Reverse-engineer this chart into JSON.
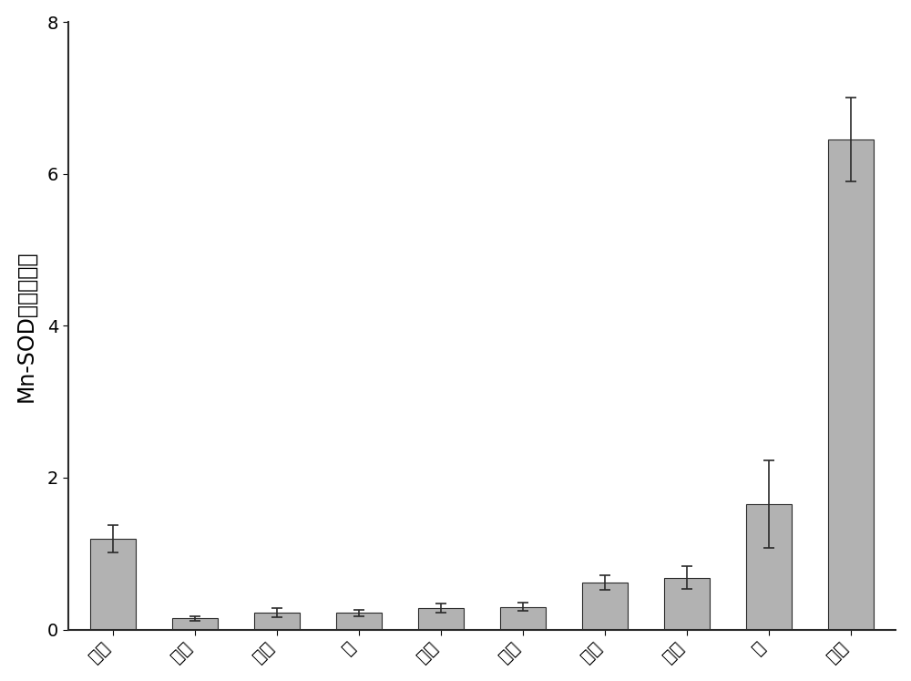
{
  "categories": [
    "肌肉",
    "小肠",
    "头肾",
    "脑",
    "心脏",
    "脾脏",
    "肝脏",
    "血液",
    "鲮",
    "皮肤"
  ],
  "values": [
    1.2,
    0.15,
    0.22,
    0.22,
    0.28,
    0.3,
    0.62,
    0.68,
    1.65,
    6.45
  ],
  "errors": [
    0.18,
    0.03,
    0.06,
    0.04,
    0.06,
    0.05,
    0.1,
    0.15,
    0.58,
    0.55
  ],
  "bar_color": "#b2b2b2",
  "bar_edgecolor": "#2a2a2a",
  "error_color": "#2a2a2a",
  "ylabel": "Mn-SOD基因表达量",
  "ylim": [
    0,
    8
  ],
  "yticks": [
    0,
    2,
    4,
    6,
    8
  ],
  "background_color": "#ffffff",
  "bar_width": 0.55,
  "ylabel_fontsize": 17,
  "tick_fontsize": 14,
  "xtick_rotation": 45
}
